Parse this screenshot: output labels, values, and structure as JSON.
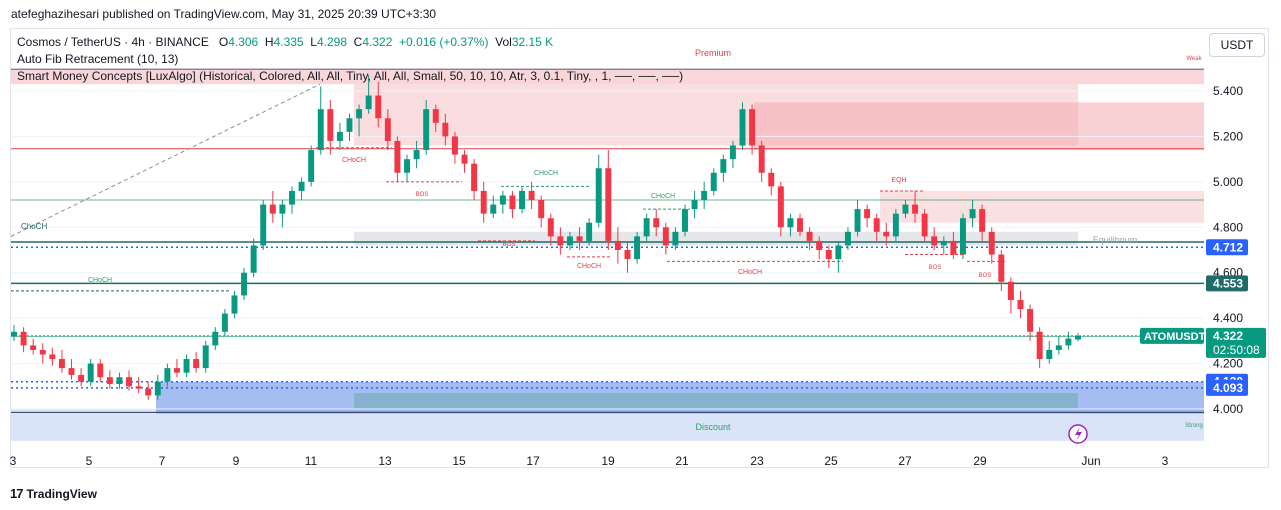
{
  "attribution": "atefeghazihesari published on TradingView.com, May 31, 2025 20:39 UTC+3:30",
  "legend": {
    "symbol": "Cosmos / TetherUS · 4h · BINANCE",
    "o_label": "O",
    "o": "4.306",
    "h_label": "H",
    "h": "4.335",
    "l_label": "L",
    "l": "4.298",
    "c_label": "C",
    "c": "4.322",
    "change": "+0.016 (+0.37%)",
    "vol_label": "Vol",
    "vol": "32.15 K",
    "indicator1": "Auto Fib Retracement (10, 13)",
    "indicator2": "Smart Money Concepts [LuxAlgo] (Historical, Colored, All, All, Tiny, All, All, Small, 50, 10, 10, Atr, 3, 0.1, Tiny, , 1, ──, ──, ──)"
  },
  "currency": "USDT",
  "brand": "TradingView",
  "colors": {
    "up": "#089981",
    "down": "#f23645",
    "premium_zone": "#f7c6c9",
    "discount_zone": "#c9d9f7",
    "demand_block": "#5b86e5",
    "fib_green": "#2e9e6a",
    "fib_blue": "#2962ff",
    "fib_red": "#e0404a",
    "axis_text": "#131722"
  },
  "chart_data": {
    "type": "candlestick",
    "symbol": "ATOMUSDT",
    "timeframe": "4h",
    "x_ticks": [
      "3",
      "5",
      "7",
      "9",
      "11",
      "13",
      "15",
      "17",
      "19",
      "21",
      "23",
      "25",
      "27",
      "29",
      "Jun",
      "3"
    ],
    "y_ticks": [
      "4.000",
      "4.200",
      "4.400",
      "4.600",
      "4.800",
      "5.000",
      "5.200",
      "5.400"
    ],
    "ylim": [
      3.83,
      5.57
    ],
    "grid": true,
    "last_price": {
      "label": "ATOMUSDT",
      "value": "4.322",
      "countdown": "02:50:08"
    },
    "levels": [
      {
        "value": "4.712",
        "style": "dotted",
        "color": "#2962ff"
      },
      {
        "value": "4.553",
        "style": "solid",
        "color": "#1e6b67"
      },
      {
        "value": "4.120",
        "style": "dotted",
        "color": "#2962ff"
      },
      {
        "value": "4.093",
        "style": "dotted",
        "color": "#2962ff"
      }
    ],
    "zones": [
      {
        "name": "Premium",
        "from": 5.43,
        "to": 5.5
      },
      {
        "name": "Equilibrium",
        "from": 4.72,
        "to": 4.78
      },
      {
        "name": "Discount",
        "from": 3.86,
        "to": 4.0
      }
    ],
    "annotations": [
      "Premium",
      "Weak",
      "Equilibrium",
      "Discount",
      "Strong",
      "CHoCH",
      "CHoCH",
      "BOS",
      "CHoCH",
      "BOS",
      "CHoCH",
      "CHoCH",
      "CHoCH",
      "EQH",
      "BOS",
      "BOS",
      "ChoCH",
      "ChoCH"
    ],
    "candles": [
      [
        4.32,
        4.37,
        4.3,
        4.34
      ],
      [
        4.34,
        4.36,
        4.25,
        4.28
      ],
      [
        4.28,
        4.31,
        4.24,
        4.26
      ],
      [
        4.26,
        4.29,
        4.2,
        4.24
      ],
      [
        4.24,
        4.27,
        4.19,
        4.22
      ],
      [
        4.22,
        4.26,
        4.16,
        4.18
      ],
      [
        4.18,
        4.22,
        4.13,
        4.15
      ],
      [
        4.15,
        4.18,
        4.1,
        4.12
      ],
      [
        4.12,
        4.22,
        4.1,
        4.2
      ],
      [
        4.2,
        4.22,
        4.12,
        4.14
      ],
      [
        4.14,
        4.17,
        4.09,
        4.11
      ],
      [
        4.11,
        4.16,
        4.09,
        4.14
      ],
      [
        4.14,
        4.17,
        4.08,
        4.1
      ],
      [
        4.1,
        4.14,
        4.07,
        4.09
      ],
      [
        4.09,
        4.12,
        4.04,
        4.06
      ],
      [
        4.06,
        4.15,
        4.04,
        4.12
      ],
      [
        4.12,
        4.2,
        4.1,
        4.18
      ],
      [
        4.18,
        4.22,
        4.14,
        4.16
      ],
      [
        4.16,
        4.24,
        4.14,
        4.22
      ],
      [
        4.22,
        4.25,
        4.16,
        4.18
      ],
      [
        4.18,
        4.3,
        4.16,
        4.28
      ],
      [
        4.28,
        4.36,
        4.26,
        4.34
      ],
      [
        4.34,
        4.44,
        4.32,
        4.42
      ],
      [
        4.42,
        4.52,
        4.4,
        4.5
      ],
      [
        4.5,
        4.62,
        4.48,
        4.6
      ],
      [
        4.6,
        4.75,
        4.58,
        4.72
      ],
      [
        4.72,
        4.92,
        4.7,
        4.9
      ],
      [
        4.9,
        4.96,
        4.82,
        4.86
      ],
      [
        4.86,
        4.92,
        4.8,
        4.9
      ],
      [
        4.9,
        4.98,
        4.86,
        4.96
      ],
      [
        4.96,
        5.02,
        4.92,
        5.0
      ],
      [
        5.0,
        5.16,
        4.98,
        5.14
      ],
      [
        5.14,
        5.42,
        5.12,
        5.32
      ],
      [
        5.32,
        5.36,
        5.12,
        5.18
      ],
      [
        5.18,
        5.26,
        5.14,
        5.22
      ],
      [
        5.22,
        5.3,
        5.18,
        5.28
      ],
      [
        5.28,
        5.34,
        5.2,
        5.32
      ],
      [
        5.32,
        5.47,
        5.3,
        5.38
      ],
      [
        5.38,
        5.44,
        5.24,
        5.28
      ],
      [
        5.28,
        5.32,
        5.14,
        5.18
      ],
      [
        5.18,
        5.2,
        5.0,
        5.04
      ],
      [
        5.04,
        5.12,
        5.0,
        5.1
      ],
      [
        5.1,
        5.18,
        5.06,
        5.14
      ],
      [
        5.14,
        5.36,
        5.12,
        5.32
      ],
      [
        5.32,
        5.34,
        5.22,
        5.26
      ],
      [
        5.26,
        5.3,
        5.16,
        5.2
      ],
      [
        5.2,
        5.22,
        5.08,
        5.12
      ],
      [
        5.12,
        5.14,
        5.04,
        5.08
      ],
      [
        5.08,
        5.1,
        4.92,
        4.96
      ],
      [
        4.96,
        5.0,
        4.82,
        4.86
      ],
      [
        4.86,
        4.94,
        4.84,
        4.9
      ],
      [
        4.9,
        4.96,
        4.86,
        4.94
      ],
      [
        4.94,
        4.96,
        4.84,
        4.88
      ],
      [
        4.88,
        4.98,
        4.86,
        4.96
      ],
      [
        4.96,
        5.0,
        4.88,
        4.92
      ],
      [
        4.92,
        4.94,
        4.8,
        4.84
      ],
      [
        4.84,
        4.86,
        4.72,
        4.76
      ],
      [
        4.76,
        4.8,
        4.68,
        4.72
      ],
      [
        4.72,
        4.78,
        4.7,
        4.76
      ],
      [
        4.76,
        4.8,
        4.7,
        4.74
      ],
      [
        4.74,
        4.84,
        4.72,
        4.82
      ],
      [
        4.82,
        5.12,
        4.8,
        5.06
      ],
      [
        5.06,
        5.14,
        4.7,
        4.74
      ],
      [
        4.74,
        4.8,
        4.64,
        4.7
      ],
      [
        4.7,
        4.74,
        4.6,
        4.66
      ],
      [
        4.66,
        4.78,
        4.64,
        4.76
      ],
      [
        4.76,
        4.86,
        4.74,
        4.84
      ],
      [
        4.84,
        4.88,
        4.76,
        4.8
      ],
      [
        4.8,
        4.82,
        4.68,
        4.72
      ],
      [
        4.72,
        4.8,
        4.7,
        4.78
      ],
      [
        4.78,
        4.9,
        4.76,
        4.88
      ],
      [
        4.88,
        4.96,
        4.84,
        4.92
      ],
      [
        4.92,
        5.0,
        4.88,
        4.96
      ],
      [
        4.96,
        5.06,
        4.94,
        5.04
      ],
      [
        5.04,
        5.12,
        5.0,
        5.1
      ],
      [
        5.1,
        5.18,
        5.06,
        5.16
      ],
      [
        5.16,
        5.35,
        5.14,
        5.32
      ],
      [
        5.32,
        5.34,
        5.12,
        5.16
      ],
      [
        5.16,
        5.18,
        5.0,
        5.04
      ],
      [
        5.04,
        5.06,
        4.94,
        4.98
      ],
      [
        4.98,
        5.0,
        4.76,
        4.8
      ],
      [
        4.8,
        4.86,
        4.76,
        4.84
      ],
      [
        4.84,
        4.86,
        4.76,
        4.78
      ],
      [
        4.78,
        4.8,
        4.7,
        4.74
      ],
      [
        4.74,
        4.76,
        4.66,
        4.7
      ],
      [
        4.7,
        4.72,
        4.62,
        4.66
      ],
      [
        4.66,
        4.74,
        4.6,
        4.72
      ],
      [
        4.72,
        4.8,
        4.7,
        4.78
      ],
      [
        4.78,
        4.92,
        4.76,
        4.88
      ],
      [
        4.88,
        4.9,
        4.8,
        4.84
      ],
      [
        4.84,
        4.86,
        4.74,
        4.78
      ],
      [
        4.78,
        4.82,
        4.72,
        4.76
      ],
      [
        4.76,
        4.88,
        4.74,
        4.86
      ],
      [
        4.86,
        4.92,
        4.84,
        4.9
      ],
      [
        4.9,
        4.96,
        4.82,
        4.86
      ],
      [
        4.86,
        4.88,
        4.74,
        4.76
      ],
      [
        4.76,
        4.8,
        4.7,
        4.72
      ],
      [
        4.72,
        4.76,
        4.68,
        4.74
      ],
      [
        4.74,
        4.78,
        4.66,
        4.68
      ],
      [
        4.68,
        4.86,
        4.66,
        4.84
      ],
      [
        4.84,
        4.92,
        4.8,
        4.88
      ],
      [
        4.88,
        4.9,
        4.74,
        4.78
      ],
      [
        4.78,
        4.8,
        4.64,
        4.68
      ],
      [
        4.68,
        4.7,
        4.52,
        4.56
      ],
      [
        4.56,
        4.58,
        4.42,
        4.48
      ],
      [
        4.48,
        4.52,
        4.4,
        4.44
      ],
      [
        4.44,
        4.46,
        4.3,
        4.34
      ],
      [
        4.34,
        4.36,
        4.18,
        4.22
      ],
      [
        4.22,
        4.3,
        4.2,
        4.26
      ],
      [
        4.26,
        4.32,
        4.24,
        4.28
      ],
      [
        4.28,
        4.34,
        4.26,
        4.31
      ],
      [
        4.306,
        4.335,
        4.298,
        4.322
      ]
    ]
  }
}
